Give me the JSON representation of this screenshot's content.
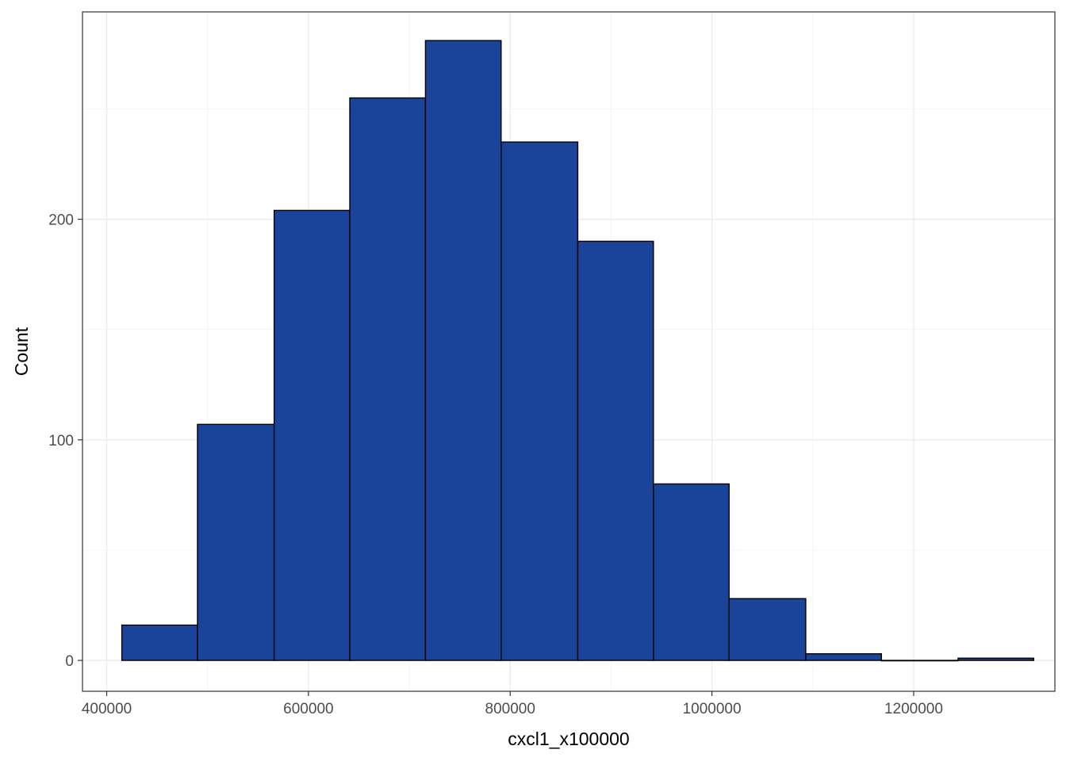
{
  "chart_data": {
    "type": "bar",
    "subtype": "histogram",
    "title": "",
    "xlabel": "cxcl1_x100000",
    "ylabel": "Count",
    "xlim": [
      376000,
      1340000
    ],
    "ylim": [
      -14,
      294
    ],
    "x_ticks": [
      400000,
      600000,
      800000,
      1000000,
      1200000
    ],
    "x_tick_labels": [
      "400000",
      "600000",
      "800000",
      "1000000",
      "1200000"
    ],
    "y_ticks": [
      0,
      100,
      200
    ],
    "y_tick_labels": [
      "0",
      "100",
      "200"
    ],
    "grid": true,
    "legend": "none",
    "bins": [
      {
        "x_start": 415000,
        "x_end": 490000,
        "count": 16
      },
      {
        "x_start": 490000,
        "x_end": 566000,
        "count": 107
      },
      {
        "x_start": 566000,
        "x_end": 641000,
        "count": 204
      },
      {
        "x_start": 641000,
        "x_end": 716000,
        "count": 255
      },
      {
        "x_start": 716000,
        "x_end": 791000,
        "count": 281
      },
      {
        "x_start": 791000,
        "x_end": 867000,
        "count": 235
      },
      {
        "x_start": 867000,
        "x_end": 942000,
        "count": 190
      },
      {
        "x_start": 942000,
        "x_end": 1017000,
        "count": 80
      },
      {
        "x_start": 1017000,
        "x_end": 1093000,
        "count": 28
      },
      {
        "x_start": 1093000,
        "x_end": 1168000,
        "count": 3
      },
      {
        "x_start": 1168000,
        "x_end": 1244000,
        "count": 0
      },
      {
        "x_start": 1244000,
        "x_end": 1319000,
        "count": 1
      }
    ],
    "colors": {
      "bar_fill": "#19449A",
      "bar_stroke": "#000000",
      "grid_major": "#EBEBEB",
      "grid_minor": "#F2F2F2",
      "panel_border": "#333333",
      "tick_label": "#4D4D4D",
      "axis_title": "#000000"
    }
  }
}
